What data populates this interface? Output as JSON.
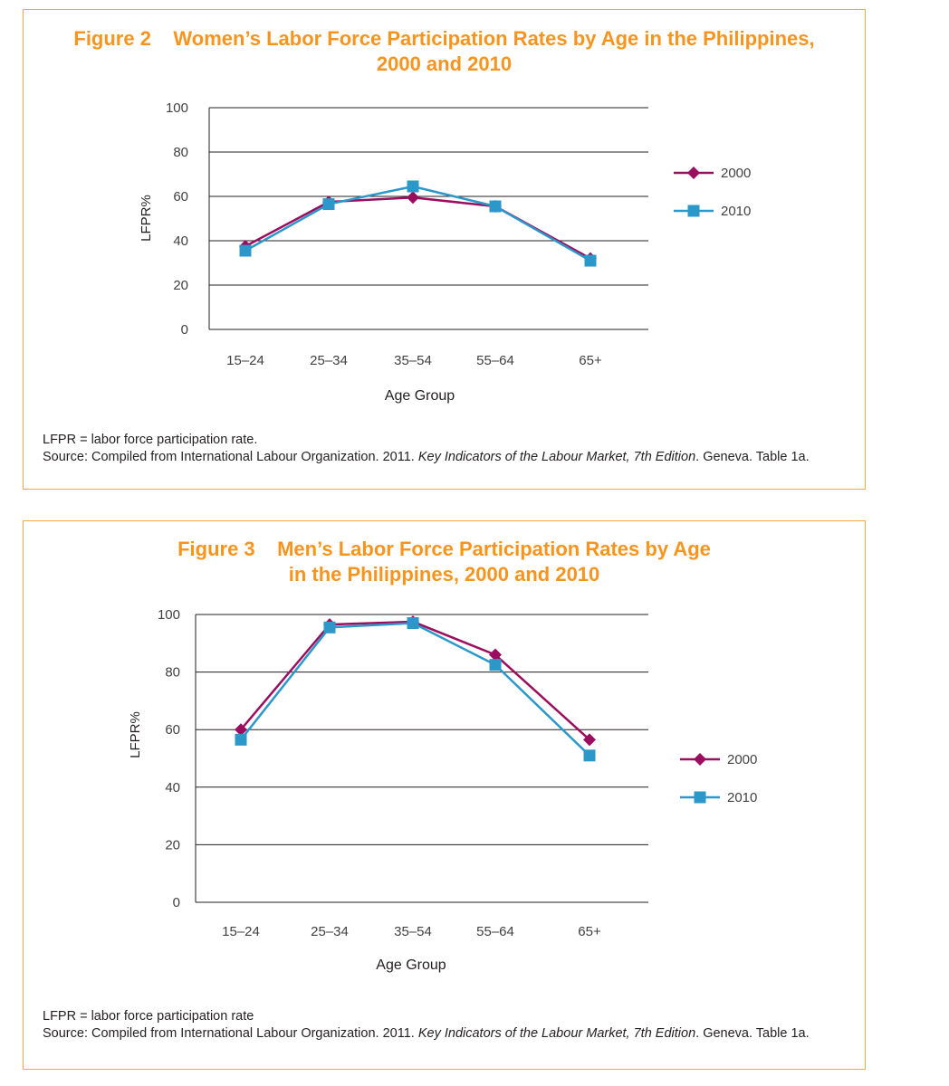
{
  "figures": [
    {
      "title_lines": [
        "Figure 2    Women’s Labor Force Participation Rates by Age in the Philippines,",
        "2000 and 2010"
      ],
      "notes": {
        "abbrev": "LFPR = labor force participation rate.",
        "source_pre": "Source: Compiled from International Labour Organization. 2011. ",
        "source_ital": "Key Indicators of the Labour Market, 7th Edition",
        "source_post": ". Geneva. Table 1a."
      }
    },
    {
      "title_lines": [
        "Figure 3    Men’s Labor Force Participation Rates by Age",
        "in the Philippines, 2000 and 2010"
      ],
      "notes": {
        "abbrev": "LFPR = labor force participation rate",
        "source_pre": "Source: Compiled from International Labour Organization. 2011. ",
        "source_ital": "Key Indicators of the Labour Market, 7th Edition",
        "source_post": ". Geneva. Table 1a."
      }
    }
  ],
  "colors": {
    "border": "#f7a743",
    "title": "#f7941d",
    "series_2000": "#9b0e5f",
    "series_2010": "#2c97c9",
    "grid": "#231f20"
  },
  "chart_data": [
    {
      "type": "line",
      "title": "Figure 2    Women’s Labor Force Participation Rates by Age in the Philippines, 2000 and 2010",
      "xlabel": "Age Group",
      "ylabel": "LFPR%",
      "categories": [
        "15–24",
        "25–34",
        "35–54",
        "55–64",
        "65+"
      ],
      "ylim": [
        0,
        100
      ],
      "yticks": [
        0,
        20,
        40,
        60,
        80,
        100
      ],
      "grid": true,
      "legend": "right",
      "series": [
        {
          "name": "2000",
          "marker": "diamond",
          "values": [
            37.5,
            57.5,
            59.5,
            55.5,
            32
          ]
        },
        {
          "name": "2010",
          "marker": "square",
          "values": [
            35.5,
            56.5,
            64.5,
            55.5,
            31
          ]
        }
      ]
    },
    {
      "type": "line",
      "title": "Figure 3    Men’s Labor Force Participation Rates by Age in the Philippines, 2000 and 2010",
      "xlabel": "Age Group",
      "ylabel": "LFPR%",
      "categories": [
        "15–24",
        "25–34",
        "35–54",
        "55–64",
        "65+"
      ],
      "ylim": [
        0,
        100
      ],
      "yticks": [
        0,
        20,
        40,
        60,
        80,
        100
      ],
      "grid": true,
      "legend": "right",
      "series": [
        {
          "name": "2000",
          "marker": "diamond",
          "values": [
            60,
            96.5,
            97.5,
            86,
            56.5
          ]
        },
        {
          "name": "2010",
          "marker": "square",
          "values": [
            56.5,
            95.5,
            97,
            82.5,
            51
          ]
        }
      ]
    }
  ]
}
